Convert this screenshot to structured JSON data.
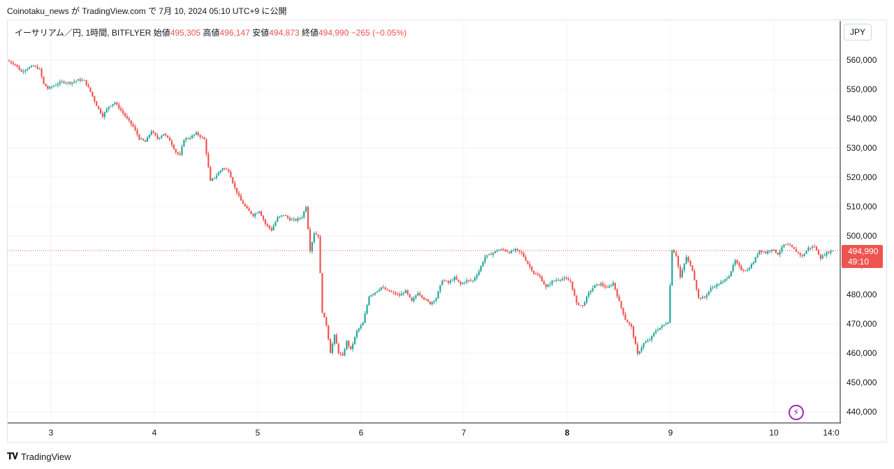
{
  "header": {
    "attribution": "Coinotaku_news が TradingView.com で 7月 10, 2024 05:10 UTC+9 に公開"
  },
  "legend": {
    "symbol": "イーサリアム／円, 1時間, BITFLYER",
    "open_label": "始値",
    "open": "495,305",
    "high_label": "高値",
    "high": "496,147",
    "low_label": "安値",
    "low": "494,873",
    "close_label": "終値",
    "close": "494,990",
    "change": "−265 (−0.05%)"
  },
  "price_axis": {
    "currency": "JPY",
    "last_price_label": "494,990",
    "countdown": "49:10"
  },
  "footer": {
    "brand": "TradingView"
  },
  "colors": {
    "up": "#26a69a",
    "down": "#ef5350",
    "accent": "#9c27b0",
    "grid": "#f0f3fa"
  },
  "icons": {
    "bolt": "lightning-bolt-icon",
    "logo": "tradingview-logo-icon"
  },
  "chart_data": {
    "type": "candlestick",
    "interval": "1時間",
    "ylim": [
      436000,
      568000
    ],
    "y_ticks": [
      "560,000",
      "550,000",
      "540,000",
      "530,000",
      "520,000",
      "510,000",
      "500,000",
      "490,000",
      "480,000",
      "470,000",
      "460,000",
      "450,000",
      "440,000"
    ],
    "y_tick_values": [
      560000,
      550000,
      540000,
      530000,
      520000,
      510000,
      500000,
      490000,
      480000,
      470000,
      460000,
      450000,
      440000
    ],
    "x_ticks": [
      "3",
      "4",
      "5",
      "6",
      "7",
      "8",
      "9",
      "10",
      "14:0"
    ],
    "x_tick_bold": [
      false,
      false,
      false,
      false,
      false,
      true,
      false,
      false,
      false
    ],
    "last_price": 494990,
    "close_path": [
      [
        0,
        559500
      ],
      [
        3,
        558500
      ],
      [
        6,
        556000
      ],
      [
        9,
        557200
      ],
      [
        12,
        558000
      ],
      [
        15,
        556800
      ],
      [
        17,
        551800
      ],
      [
        19,
        550300
      ],
      [
        22,
        551200
      ],
      [
        26,
        552600
      ],
      [
        30,
        552200
      ],
      [
        34,
        553200
      ],
      [
        37,
        553000
      ],
      [
        40,
        549200
      ],
      [
        43,
        544500
      ],
      [
        46,
        540900
      ],
      [
        49,
        544200
      ],
      [
        52,
        545500
      ],
      [
        55,
        542800
      ],
      [
        58,
        540000
      ],
      [
        61,
        537300
      ],
      [
        64,
        533200
      ],
      [
        67,
        532100
      ],
      [
        70,
        535800
      ],
      [
        73,
        533200
      ],
      [
        76,
        534900
      ],
      [
        79,
        532600
      ],
      [
        82,
        528600
      ],
      [
        84,
        527400
      ],
      [
        86,
        533000
      ],
      [
        89,
        533500
      ],
      [
        92,
        535000
      ],
      [
        96,
        532900
      ],
      [
        99,
        518600
      ],
      [
        102,
        520700
      ],
      [
        105,
        523200
      ],
      [
        108,
        522200
      ],
      [
        111,
        516300
      ],
      [
        114,
        512000
      ],
      [
        117,
        509100
      ],
      [
        120,
        507000
      ],
      [
        123,
        508600
      ],
      [
        126,
        504100
      ],
      [
        129,
        502000
      ],
      [
        132,
        506200
      ],
      [
        135,
        507200
      ],
      [
        138,
        505600
      ],
      [
        141,
        505400
      ],
      [
        144,
        506500
      ],
      [
        146,
        510100
      ],
      [
        148,
        495000
      ],
      [
        150,
        501000
      ],
      [
        152,
        500000
      ],
      [
        154,
        474100
      ],
      [
        156,
        469600
      ],
      [
        158,
        460300
      ],
      [
        160,
        466000
      ],
      [
        162,
        460200
      ],
      [
        164,
        458900
      ],
      [
        166,
        464000
      ],
      [
        168,
        461100
      ],
      [
        171,
        467500
      ],
      [
        174,
        470200
      ],
      [
        177,
        479500
      ],
      [
        180,
        480800
      ],
      [
        183,
        482500
      ],
      [
        186,
        481300
      ],
      [
        189,
        480500
      ],
      [
        192,
        479700
      ],
      [
        195,
        481200
      ],
      [
        198,
        477600
      ],
      [
        201,
        480700
      ],
      [
        204,
        478600
      ],
      [
        207,
        476900
      ],
      [
        210,
        478800
      ],
      [
        213,
        485000
      ],
      [
        216,
        484000
      ],
      [
        219,
        485700
      ],
      [
        222,
        483500
      ],
      [
        225,
        484800
      ],
      [
        228,
        484700
      ],
      [
        231,
        488000
      ],
      [
        234,
        492900
      ],
      [
        237,
        493800
      ],
      [
        240,
        495100
      ],
      [
        243,
        495300
      ],
      [
        246,
        494400
      ],
      [
        249,
        495300
      ],
      [
        252,
        494100
      ],
      [
        255,
        490600
      ],
      [
        258,
        487300
      ],
      [
        261,
        486000
      ],
      [
        264,
        482400
      ],
      [
        267,
        484500
      ],
      [
        270,
        485200
      ],
      [
        273,
        485400
      ],
      [
        276,
        484500
      ],
      [
        279,
        476900
      ],
      [
        282,
        476100
      ],
      [
        285,
        480500
      ],
      [
        288,
        483100
      ],
      [
        291,
        483600
      ],
      [
        294,
        482100
      ],
      [
        297,
        484000
      ],
      [
        300,
        477500
      ],
      [
        303,
        471500
      ],
      [
        306,
        468900
      ],
      [
        309,
        459600
      ],
      [
        312,
        463300
      ],
      [
        315,
        464600
      ],
      [
        318,
        467700
      ],
      [
        321,
        469100
      ],
      [
        324,
        470700
      ],
      [
        326,
        495400
      ],
      [
        328,
        493400
      ],
      [
        330,
        485800
      ],
      [
        333,
        492800
      ],
      [
        336,
        488300
      ],
      [
        339,
        478800
      ],
      [
        342,
        479000
      ],
      [
        345,
        482100
      ],
      [
        348,
        483300
      ],
      [
        351,
        484400
      ],
      [
        354,
        486500
      ],
      [
        357,
        491500
      ],
      [
        360,
        488500
      ],
      [
        363,
        488300
      ],
      [
        366,
        491100
      ],
      [
        369,
        495200
      ],
      [
        372,
        494200
      ],
      [
        375,
        495600
      ],
      [
        378,
        493800
      ],
      [
        381,
        497000
      ],
      [
        384,
        496600
      ],
      [
        387,
        494700
      ],
      [
        390,
        493000
      ],
      [
        393,
        495900
      ],
      [
        396,
        496400
      ],
      [
        399,
        492500
      ],
      [
        402,
        494200
      ],
      [
        405,
        494990
      ]
    ]
  }
}
